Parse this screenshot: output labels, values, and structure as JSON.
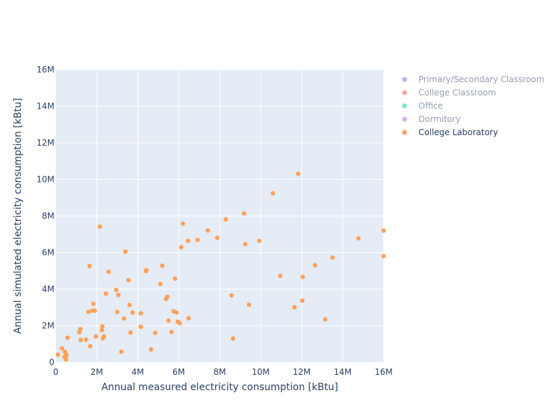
{
  "chart_data": {
    "type": "scatter",
    "title": "",
    "xlabel": "Annual measured electricity consumption [kBtu]",
    "ylabel": "Annual simulated electricity consumption [kBtu]",
    "xlim": [
      0,
      16000000
    ],
    "ylim": [
      0,
      16000000
    ],
    "xticks": [
      0,
      2000000,
      4000000,
      6000000,
      8000000,
      10000000,
      12000000,
      14000000,
      16000000
    ],
    "xtick_labels": [
      "0",
      "2M",
      "4M",
      "6M",
      "8M",
      "10M",
      "12M",
      "14M",
      "16M"
    ],
    "yticks": [
      0,
      2000000,
      4000000,
      6000000,
      8000000,
      10000000,
      12000000,
      14000000,
      16000000
    ],
    "ytick_labels": [
      "0",
      "2M",
      "4M",
      "6M",
      "8M",
      "10M",
      "12M",
      "14M",
      "16M"
    ],
    "grid": true,
    "plot_background": "#e5ecf6",
    "legend_placement": "right",
    "legend": [
      {
        "name": "Primary/Secondary Classroom",
        "color": "#636efa",
        "active": false
      },
      {
        "name": "College Classroom",
        "color": "#ef553b",
        "active": false
      },
      {
        "name": "Office",
        "color": "#00cc96",
        "active": false
      },
      {
        "name": "Dormitory",
        "color": "#ab63fa",
        "active": false
      },
      {
        "name": "College Laboratory",
        "color": "#ffa15a",
        "active": true
      }
    ],
    "series": [
      {
        "name": "College Laboratory",
        "color": "#ffa15a",
        "points": [
          [
            100000,
            410000
          ],
          [
            300000,
            760000
          ],
          [
            430000,
            300000
          ],
          [
            450000,
            580000
          ],
          [
            480000,
            230000
          ],
          [
            500000,
            160000
          ],
          [
            520000,
            410000
          ],
          [
            570000,
            1340000
          ],
          [
            1150000,
            1640000
          ],
          [
            1200000,
            1810000
          ],
          [
            1220000,
            1220000
          ],
          [
            1480000,
            1240000
          ],
          [
            1600000,
            2760000
          ],
          [
            1650000,
            5260000
          ],
          [
            1680000,
            880000
          ],
          [
            1780000,
            2820000
          ],
          [
            1830000,
            3200000
          ],
          [
            1900000,
            2820000
          ],
          [
            1950000,
            1410000
          ],
          [
            2150000,
            7420000
          ],
          [
            2250000,
            1760000
          ],
          [
            2270000,
            1970000
          ],
          [
            2300000,
            1310000
          ],
          [
            2350000,
            1420000
          ],
          [
            2450000,
            3750000
          ],
          [
            2570000,
            4950000
          ],
          [
            2950000,
            3960000
          ],
          [
            3000000,
            2750000
          ],
          [
            3050000,
            3680000
          ],
          [
            3200000,
            580000
          ],
          [
            3330000,
            2390000
          ],
          [
            3400000,
            6050000
          ],
          [
            3550000,
            4490000
          ],
          [
            3600000,
            3130000
          ],
          [
            3650000,
            1620000
          ],
          [
            3750000,
            2720000
          ],
          [
            4150000,
            1940000
          ],
          [
            4150000,
            2680000
          ],
          [
            4400000,
            4990000
          ],
          [
            4420000,
            5040000
          ],
          [
            4650000,
            700000
          ],
          [
            4850000,
            1600000
          ],
          [
            5100000,
            4290000
          ],
          [
            5200000,
            5280000
          ],
          [
            5380000,
            3460000
          ],
          [
            5450000,
            3580000
          ],
          [
            5500000,
            2280000
          ],
          [
            5650000,
            1650000
          ],
          [
            5750000,
            2790000
          ],
          [
            5820000,
            4570000
          ],
          [
            5900000,
            2720000
          ],
          [
            5950000,
            2220000
          ],
          [
            6050000,
            2140000
          ],
          [
            6120000,
            6290000
          ],
          [
            6200000,
            7580000
          ],
          [
            6450000,
            6640000
          ],
          [
            6480000,
            2410000
          ],
          [
            6920000,
            6690000
          ],
          [
            7420000,
            7210000
          ],
          [
            7880000,
            6810000
          ],
          [
            8300000,
            7810000
          ],
          [
            8580000,
            3660000
          ],
          [
            8650000,
            1300000
          ],
          [
            9180000,
            8140000
          ],
          [
            9250000,
            6460000
          ],
          [
            9430000,
            3150000
          ],
          [
            9930000,
            6640000
          ],
          [
            10600000,
            9240000
          ],
          [
            10950000,
            4730000
          ],
          [
            11650000,
            3010000
          ],
          [
            11830000,
            10310000
          ],
          [
            12030000,
            3370000
          ],
          [
            12050000,
            4670000
          ],
          [
            12650000,
            5310000
          ],
          [
            13150000,
            2350000
          ],
          [
            13500000,
            5720000
          ],
          [
            14770000,
            6780000
          ],
          [
            16000000,
            7200000
          ],
          [
            16000000,
            5800000
          ]
        ]
      }
    ]
  }
}
